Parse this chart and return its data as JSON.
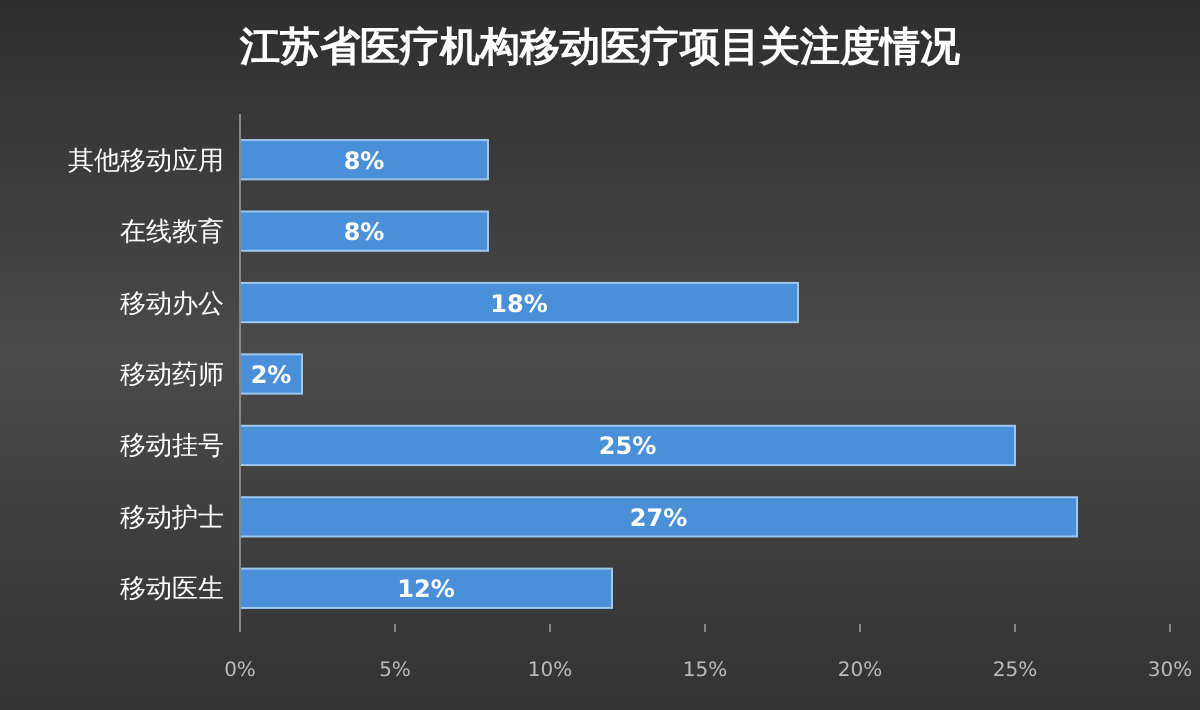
{
  "chart_data": {
    "type": "bar",
    "orientation": "horizontal",
    "title": "江苏省医疗机构移动医疗项目关注度情况",
    "categories": [
      "其他移动应用",
      "在线教育",
      "移动办公",
      "移动药师",
      "移动挂号",
      "移动护士",
      "移动医生"
    ],
    "values": [
      8,
      8,
      18,
      2,
      25,
      27,
      12
    ],
    "value_labels": [
      "8%",
      "8%",
      "18%",
      "2%",
      "25%",
      "27%",
      "12%"
    ],
    "color": "#4a90d9",
    "xlim": [
      0,
      30
    ],
    "xticks": [
      {
        "value": 0,
        "label": "0%"
      },
      {
        "value": 5,
        "label": "5%"
      },
      {
        "value": 10,
        "label": "10%"
      },
      {
        "value": 15,
        "label": "15%"
      },
      {
        "value": 20,
        "label": "20%"
      },
      {
        "value": 25,
        "label": "25%"
      },
      {
        "value": 30,
        "label": "30%"
      }
    ]
  }
}
